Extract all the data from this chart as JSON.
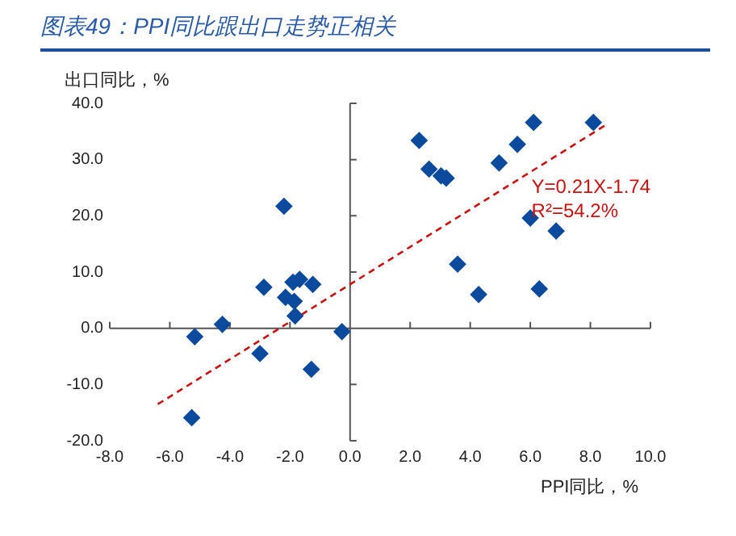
{
  "chart_data": {
    "type": "scatter",
    "title": "图表49：PPI同比跟出口走势正相关",
    "xlabel": "PPI同比，%",
    "ylabel": "出口同比，%",
    "annotations": [
      "Y=0.21X-1.74",
      "R²=54.2%"
    ],
    "series": [
      {
        "type": "scatter",
        "color": "#0b4a9c",
        "marker": "diamond",
        "x": [
          2.3,
          -2.2,
          -2.87,
          -1.9,
          -1.68,
          -1.24,
          -2.15,
          -1.86,
          -1.83,
          -4.25,
          -5.17,
          -0.27,
          -3.0,
          -1.29,
          -5.27,
          2.63,
          3.03,
          3.2,
          3.58,
          4.28,
          4.96,
          5.57,
          6.11,
          8.1,
          6.0,
          6.86,
          6.3
        ],
        "values": [
          33.4,
          21.7,
          7.3,
          8.2,
          8.7,
          7.8,
          5.5,
          4.8,
          2.2,
          0.7,
          -1.5,
          -0.6,
          -4.5,
          -7.3,
          -15.9,
          28.3,
          27.1,
          26.7,
          11.4,
          6.0,
          29.4,
          32.7,
          36.6,
          36.6,
          19.6,
          17.3,
          7.0
        ]
      },
      {
        "type": "line",
        "color": "#cc1111",
        "line_style": "dashed",
        "marker": "none",
        "x": [
          -6.4,
          8.5
        ],
        "values": [
          -13.5,
          36.1
        ]
      }
    ],
    "xlim": [
      -8,
      10
    ],
    "xticks": [
      {
        "value": -8,
        "label": "-8.0"
      },
      {
        "value": -6,
        "label": "-6.0"
      },
      {
        "value": -4,
        "label": "-4.0"
      },
      {
        "value": -2,
        "label": "-2.0"
      },
      {
        "value": 0,
        "label": "0.0"
      },
      {
        "value": 2,
        "label": "2.0"
      },
      {
        "value": 4,
        "label": "4.0"
      },
      {
        "value": 6,
        "label": "6.0"
      },
      {
        "value": 8,
        "label": "8.0"
      },
      {
        "value": 10,
        "label": "10.0"
      }
    ],
    "ylim": [
      -20,
      40
    ],
    "yticks": [
      {
        "value": -20,
        "label": "-20.0"
      },
      {
        "value": -10,
        "label": "-10.0"
      },
      {
        "value": 0,
        "label": "0.0"
      },
      {
        "value": 10,
        "label": "10.0"
      },
      {
        "value": 20,
        "label": "20.0"
      },
      {
        "value": 30,
        "label": "30.0"
      },
      {
        "value": 40,
        "label": "40.0"
      }
    ],
    "legend": false
  }
}
